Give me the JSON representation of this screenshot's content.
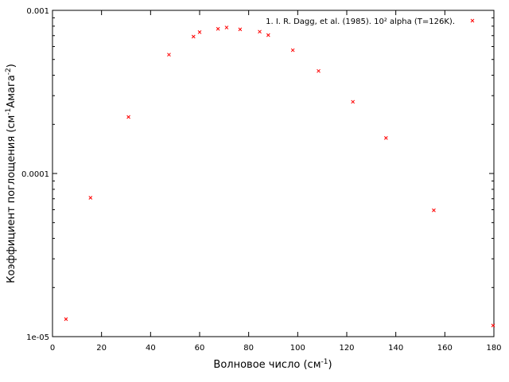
{
  "chart_data": {
    "type": "scatter",
    "xlabel_main": "Волновое число (см",
    "xlabel_sup": "-1",
    "xlabel_end": ")",
    "ylabel_main": "Коэффициент поглощения (см",
    "ylabel_sup1": "-1",
    "ylabel_mid": "Амага",
    "ylabel_sup2": "-2",
    "ylabel_end": ")",
    "xlim": [
      0,
      180
    ],
    "ylim": [
      1e-05,
      0.001
    ],
    "yscale": "log",
    "x_ticks": [
      0,
      20,
      40,
      60,
      80,
      100,
      120,
      140,
      160,
      180
    ],
    "x_tick_labels": [
      "0",
      "20",
      "40",
      "60",
      "80",
      "100",
      "120",
      "140",
      "160",
      "180"
    ],
    "y_ticks": [
      1e-05,
      0.0001,
      0.001
    ],
    "y_tick_labels": [
      "1e-05",
      "0.0001",
      "0.001"
    ],
    "grid": false,
    "legend_position": "top-right",
    "series": [
      {
        "name": "1. I. R. Dagg, et al. (1985). 10² alpha (T=126K).",
        "color": "#ff0000",
        "marker": "x",
        "x": [
          5.5,
          15.5,
          31.0,
          47.5,
          57.5,
          60.0,
          67.5,
          71.0,
          76.5,
          84.5,
          88.0,
          98.0,
          108.5,
          122.5,
          136.0,
          155.5,
          180.0
        ],
        "y": [
          1.28e-05,
          7.1e-05,
          0.000222,
          0.000535,
          0.00069,
          0.000735,
          0.00077,
          0.000785,
          0.000765,
          0.00074,
          0.000705,
          0.00057,
          0.000425,
          0.000275,
          0.000165,
          5.95e-05,
          1.17e-05
        ]
      }
    ]
  }
}
